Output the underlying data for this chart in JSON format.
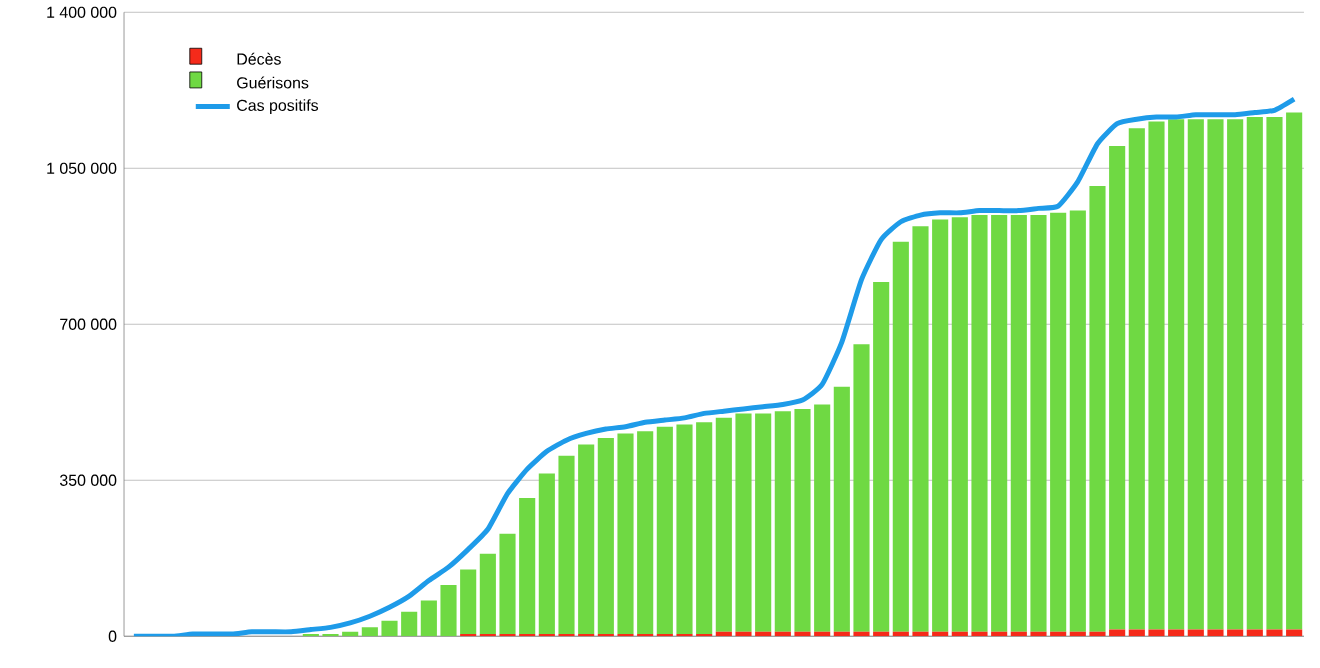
{
  "chart_data": {
    "type": "bar",
    "stacked": true,
    "categories": [
      null,
      null,
      null,
      null,
      null,
      null,
      null,
      null,
      null,
      null,
      null,
      null,
      null,
      null,
      null,
      null,
      null,
      null,
      null,
      null,
      null,
      null,
      null,
      null,
      null,
      null,
      null,
      null,
      null,
      null,
      null,
      null,
      null,
      null,
      null,
      null,
      null,
      null,
      null,
      null,
      null,
      null,
      null,
      null,
      null,
      null,
      null,
      null,
      null,
      null,
      null,
      null,
      null,
      null,
      null,
      null,
      null,
      null,
      null,
      null
    ],
    "series": [
      {
        "name": "Décès",
        "color": "#f52a1a",
        "values": [
          0,
          0,
          0,
          0,
          0,
          0,
          0,
          0,
          0,
          0,
          0,
          0,
          0,
          0,
          0,
          0,
          0,
          5000,
          5000,
          5000,
          5000,
          5000,
          5000,
          5000,
          5000,
          5000,
          5000,
          5000,
          5000,
          5000,
          10000,
          10000,
          10000,
          10000,
          10000,
          10000,
          10000,
          10000,
          10000,
          10000,
          10000,
          10000,
          10000,
          10000,
          10000,
          10000,
          10000,
          10000,
          10000,
          10000,
          15000,
          15000,
          15000,
          15000,
          15000,
          15000,
          15000,
          15000,
          15000,
          15000
        ]
      },
      {
        "name": "Guérisons",
        "color": "#6fd943",
        "values": [
          0,
          0,
          0,
          0,
          0,
          0,
          0,
          0,
          0,
          5000,
          5000,
          10000,
          20000,
          35000,
          55000,
          80000,
          115000,
          145000,
          180000,
          225000,
          305000,
          360000,
          400000,
          425000,
          440000,
          450000,
          455000,
          465000,
          470000,
          475000,
          480000,
          490000,
          490000,
          495000,
          500000,
          510000,
          550000,
          645000,
          785000,
          875000,
          910000,
          925000,
          930000,
          935000,
          935000,
          935000,
          935000,
          940000,
          945000,
          1000000,
          1085000,
          1125000,
          1140000,
          1145000,
          1145000,
          1145000,
          1145000,
          1150000,
          1150000,
          1160000
        ]
      },
      {
        "name": "Cas positifs",
        "type": "line",
        "color": "#1e9be9",
        "values": [
          0,
          0,
          0,
          5000,
          5000,
          5000,
          10000,
          10000,
          10000,
          15000,
          20000,
          30000,
          45000,
          65000,
          90000,
          125000,
          155000,
          195000,
          240000,
          320000,
          375000,
          415000,
          440000,
          455000,
          465000,
          470000,
          480000,
          485000,
          490000,
          500000,
          505000,
          510000,
          515000,
          520000,
          530000,
          565000,
          660000,
          800000,
          890000,
          930000,
          945000,
          950000,
          950000,
          955000,
          955000,
          955000,
          960000,
          965000,
          1020000,
          1105000,
          1150000,
          1160000,
          1165000,
          1165000,
          1170000,
          1170000,
          1170000,
          1175000,
          1180000,
          1205000
        ]
      }
    ],
    "ylim": [
      0,
      1400000
    ],
    "yticks": [
      0,
      {
        "value": 350000,
        "label": "350 000"
      },
      {
        "value": 700000,
        "label": "700 000"
      },
      {
        "value": 1050000,
        "label": "1 050 000"
      },
      {
        "value": 1400000,
        "label": "1 400 000"
      }
    ],
    "grid": "y",
    "legend": "top left",
    "tick_labels": "y"
  }
}
